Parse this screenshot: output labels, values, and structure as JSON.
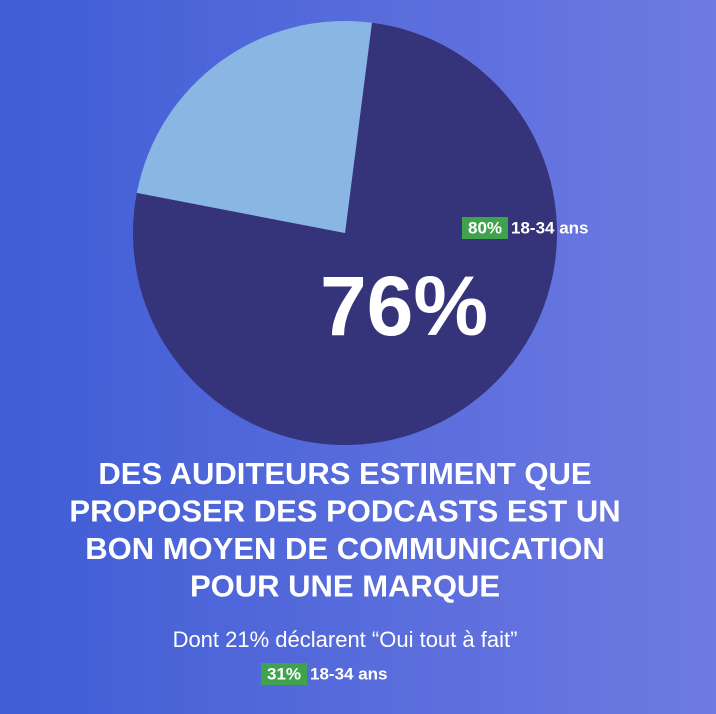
{
  "chart_data": {
    "type": "pie",
    "categories": [
      null,
      null
    ],
    "values": [
      76,
      24
    ],
    "value_labels": [
      "76%",
      null
    ],
    "colors": [
      "#35337a",
      "#8ab6e4"
    ],
    "annotations": {
      "badge_top": {
        "value": "80%",
        "text": "18-34 ans"
      },
      "headline": [
        "DES AUDITEURS ESTIMENT QUE",
        "PROPOSER DES PODCASTS EST UN",
        "BON MOYEN DE COMMUNICATION",
        "POUR UNE MARQUE"
      ],
      "subline": "Dont 21% déclarent “Oui tout à fait”",
      "badge_bottom": {
        "value": "31%",
        "text": "18-34 ans"
      }
    }
  }
}
